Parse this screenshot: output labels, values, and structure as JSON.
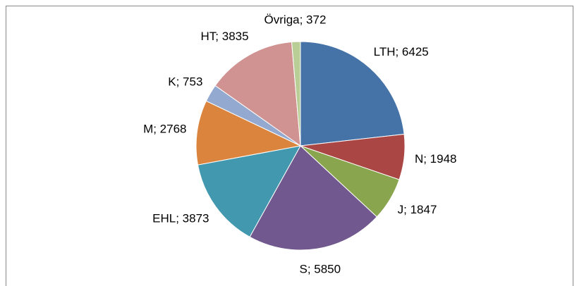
{
  "chart_data": {
    "type": "pie",
    "values": [
      6425,
      1948,
      1847,
      5850,
      3873,
      2768,
      753,
      3835,
      372
    ],
    "value_labels": [
      "LTH; 6425",
      "N; 1948",
      "J; 1847",
      "S; 5850",
      "EHL; 3873",
      "M; 2768",
      "K; 753",
      "HT; 3835",
      "Övriga; 372"
    ],
    "colors": [
      "#4572a7",
      "#aa4643",
      "#89a54e",
      "#71588f",
      "#4198af",
      "#db843d",
      "#93a9cf",
      "#d19392",
      "#b9cd96"
    ]
  }
}
